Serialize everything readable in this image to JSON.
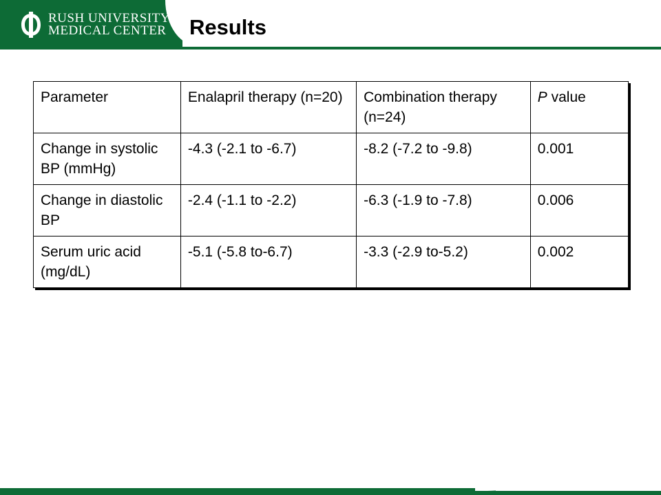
{
  "header": {
    "logo_line1": "Rush University",
    "logo_line2": "Medical Center",
    "title": "Results"
  },
  "colors": {
    "brand_green": "#0d6b36"
  },
  "icons": {
    "logo": "rush-logo-icon"
  },
  "table": {
    "headers": {
      "parameter": "Parameter",
      "enalapril": "Enalapril  therapy (n=20)",
      "combination": "Combination therapy (n=24)",
      "p_italic": "P",
      "p_rest": " value"
    },
    "rows": [
      {
        "parameter": "Change in systolic BP (mmHg)",
        "enalapril": "-4.3 (-2.1 to -6.7)",
        "combination": "-8.2 (-7.2 to -9.8)",
        "p": "0.001"
      },
      {
        "parameter": "Change in diastolic BP",
        "enalapril": "-2.4 (-1.1 to -2.2)",
        "combination": "-6.3 (-1.9 to -7.8)",
        "p": "0.006"
      },
      {
        "parameter": "Serum uric acid (mg/dL)",
        "enalapril": "-5.1 (-5.8 to-6.7)",
        "combination": "-3.3 (-2.9 to-5.2)",
        "p": "0.002"
      }
    ]
  }
}
